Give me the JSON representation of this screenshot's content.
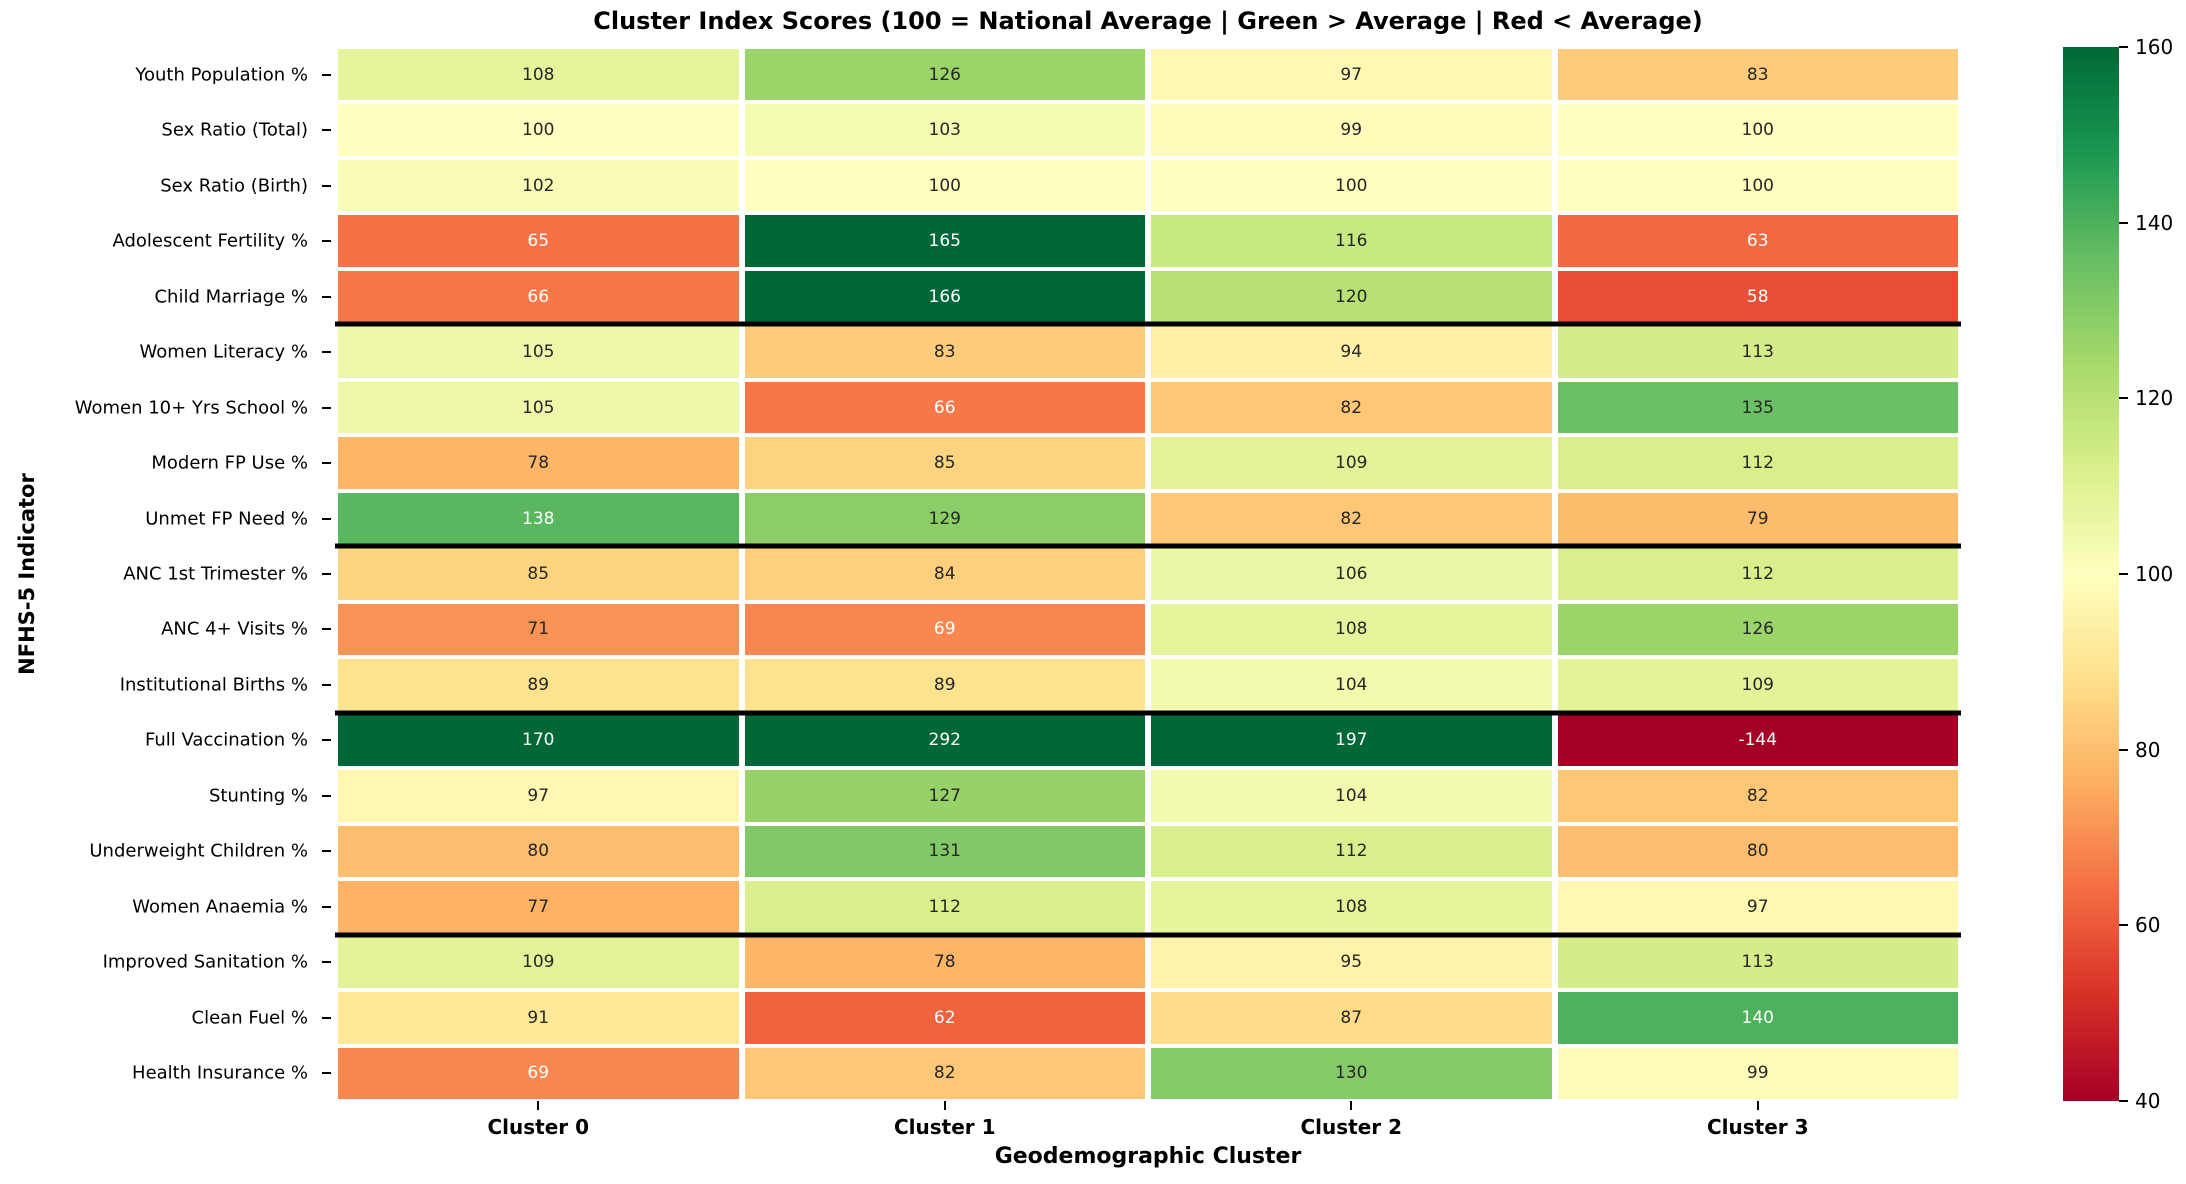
{
  "figure": {
    "background": "#ffffff"
  },
  "chart_data": {
    "type": "heatmap",
    "title": "Cluster Index Scores (100 = National Average | Green > Average | Red < Average)",
    "xlabel": "Geodemographic Cluster",
    "ylabel": "NFHS-5 Indicator",
    "columns": [
      "Cluster 0",
      "Cluster 1",
      "Cluster 2",
      "Cluster 3"
    ],
    "rows": [
      "Youth Population %",
      "Sex Ratio (Total)",
      "Sex Ratio (Birth)",
      "Adolescent Fertility %",
      "Child Marriage %",
      "Women Literacy %",
      "Women 10+ Yrs School %",
      "Modern FP Use %",
      "Unmet FP Need %",
      "ANC 1st Trimester %",
      "ANC 4+ Visits %",
      "Institutional Births %",
      "Full Vaccination %",
      "Stunting %",
      "Underweight Children %",
      "Women Anaemia %",
      "Improved Sanitation %",
      "Clean Fuel %",
      "Health Insurance %"
    ],
    "values": [
      [
        108,
        126,
        97,
        83
      ],
      [
        100,
        103,
        99,
        100
      ],
      [
        102,
        100,
        100,
        100
      ],
      [
        65,
        165,
        116,
        63
      ],
      [
        66,
        166,
        120,
        58
      ],
      [
        105,
        83,
        94,
        113
      ],
      [
        105,
        66,
        82,
        135
      ],
      [
        78,
        85,
        109,
        112
      ],
      [
        138,
        129,
        82,
        79
      ],
      [
        85,
        84,
        106,
        112
      ],
      [
        71,
        69,
        108,
        126
      ],
      [
        89,
        89,
        104,
        109
      ],
      [
        170,
        292,
        197,
        -144
      ],
      [
        97,
        127,
        104,
        82
      ],
      [
        80,
        131,
        112,
        80
      ],
      [
        77,
        112,
        108,
        97
      ],
      [
        109,
        78,
        95,
        113
      ],
      [
        91,
        62,
        87,
        140
      ],
      [
        69,
        82,
        130,
        99
      ]
    ],
    "vmin": 40,
    "vmax": 160,
    "colormap": "RdYlGn",
    "colormap_stops": [
      "#a50026",
      "#d73027",
      "#f46d43",
      "#fdae61",
      "#fee08b",
      "#ffffbf",
      "#d9ef8b",
      "#a6d96a",
      "#66bd63",
      "#1a9850",
      "#006837"
    ],
    "colorbar_ticks": [
      40,
      60,
      80,
      100,
      120,
      140,
      160
    ],
    "separator_row_boundaries": [
      5,
      9,
      12,
      16
    ],
    "annotation_text_colors": {
      "dark": "#262626",
      "light": "#ffffff"
    },
    "grid": false,
    "legend_position": "right-colorbar"
  }
}
